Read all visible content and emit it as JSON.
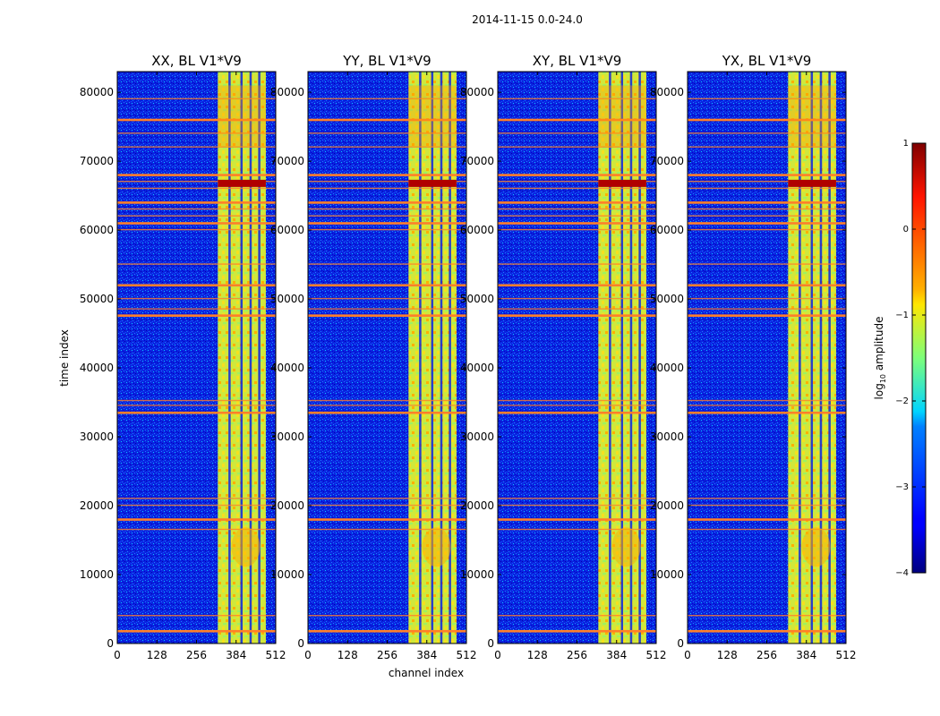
{
  "figure": {
    "suptitle": "2014-11-15 0.0-24.0",
    "ylabel": "time index",
    "xlabel": "channel index"
  },
  "chart_data": {
    "type": "heatmap",
    "panels": [
      {
        "title": "XX, BL V1*V9"
      },
      {
        "title": "YY, BL V1*V9"
      },
      {
        "title": "XY, BL V1*V9"
      },
      {
        "title": "YX, BL V1*V9"
      }
    ],
    "xlim": [
      0,
      512
    ],
    "ylim": [
      0,
      83000
    ],
    "xticks": [
      0,
      128,
      256,
      384,
      512
    ],
    "yticks": [
      0,
      10000,
      20000,
      30000,
      40000,
      50000,
      60000,
      70000,
      80000
    ],
    "signal_band_channels": [
      325,
      480
    ],
    "interference_rows": [
      1800,
      4000,
      16500,
      18000,
      20000,
      21000,
      33500,
      34500,
      35200,
      47600,
      48500,
      50000,
      52000,
      55000,
      60000,
      61000,
      62000,
      63000,
      64000,
      66000,
      67000,
      68000,
      72000,
      74000,
      76000,
      79000
    ],
    "colorbar": {
      "label": "log10 amplitude",
      "ticks": [
        1,
        0,
        -1,
        -2,
        -3,
        -4
      ],
      "tick_labels": [
        "1",
        "0",
        "−1",
        "−2",
        "−3",
        "−4"
      ],
      "vmin": -4,
      "vmax": 1,
      "colormap": "jet"
    }
  },
  "colors": {
    "background": "#0000c8",
    "band": "#d8e830",
    "stripe": "#ff7f2a",
    "hot": "#b00000"
  }
}
